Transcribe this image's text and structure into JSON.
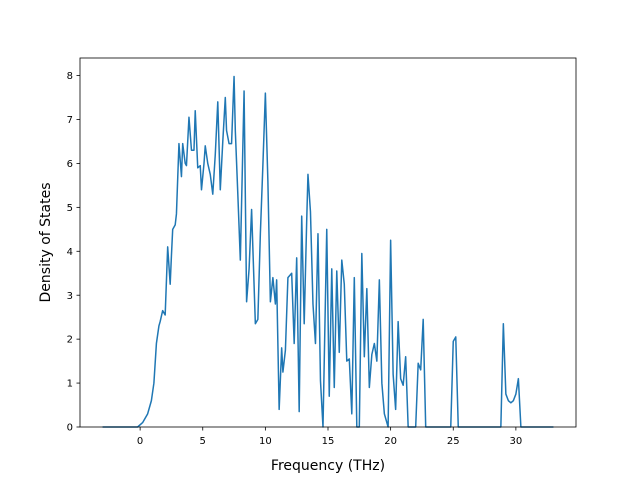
{
  "chart_data": {
    "type": "line",
    "title": "",
    "xlabel": "Frequency (THz)",
    "ylabel": "Density of States",
    "xlim": [
      -4.8,
      34.8
    ],
    "ylim": [
      0,
      8.4
    ],
    "xticks": [
      0,
      5,
      10,
      15,
      20,
      25,
      30
    ],
    "yticks": [
      0,
      1,
      2,
      3,
      4,
      5,
      6,
      7,
      8
    ],
    "grid": false,
    "legend": "none",
    "series": [
      {
        "color": "#1f77b4",
        "x": [
          -3.0,
          -0.2,
          0.2,
          0.6,
          0.9,
          1.1,
          1.3,
          1.5,
          1.6,
          1.8,
          2.0,
          2.2,
          2.4,
          2.5,
          2.6,
          2.8,
          2.9,
          3.1,
          3.3,
          3.4,
          3.6,
          3.7,
          3.9,
          4.1,
          4.3,
          4.4,
          4.6,
          4.8,
          4.9,
          5.1,
          5.2,
          5.4,
          5.6,
          5.8,
          6.0,
          6.2,
          6.4,
          6.6,
          6.8,
          6.9,
          7.1,
          7.3,
          7.5,
          7.6,
          7.8,
          8.0,
          8.3,
          8.5,
          8.7,
          8.9,
          9.2,
          9.4,
          9.6,
          9.8,
          10.0,
          10.2,
          10.4,
          10.6,
          10.8,
          10.9,
          11.1,
          11.3,
          11.4,
          11.6,
          11.8,
          12.1,
          12.3,
          12.5,
          12.7,
          12.9,
          13.1,
          13.3,
          13.4,
          13.6,
          13.8,
          14.0,
          14.2,
          14.4,
          14.6,
          14.9,
          15.1,
          15.3,
          15.5,
          15.7,
          15.9,
          16.1,
          16.3,
          16.5,
          16.7,
          16.9,
          17.1,
          17.3,
          17.5,
          17.7,
          17.9,
          18.1,
          18.3,
          18.5,
          18.7,
          18.9,
          19.1,
          19.3,
          19.5,
          19.8,
          20.0,
          20.2,
          20.4,
          20.6,
          20.8,
          21.0,
          21.2,
          21.4,
          21.6,
          21.8,
          22.0,
          22.2,
          22.4,
          22.6,
          22.8,
          23.0,
          24.6,
          24.8,
          25.0,
          25.2,
          25.4,
          28.6,
          28.8,
          29.0,
          29.2,
          29.4,
          29.6,
          29.8,
          30.0,
          30.2,
          30.4,
          33.0
        ],
        "y": [
          0,
          0,
          0.1,
          0.3,
          0.6,
          1.0,
          1.9,
          2.3,
          2.4,
          2.65,
          2.55,
          4.1,
          3.25,
          3.9,
          4.5,
          4.6,
          4.85,
          6.45,
          5.7,
          6.45,
          6.0,
          5.95,
          7.05,
          6.3,
          6.3,
          7.2,
          5.9,
          5.95,
          5.4,
          6.0,
          6.4,
          6.0,
          5.75,
          5.3,
          6.2,
          7.4,
          5.4,
          6.5,
          7.5,
          6.75,
          6.45,
          6.45,
          7.98,
          6.75,
          5.3,
          3.8,
          7.65,
          2.85,
          3.6,
          4.95,
          2.35,
          2.45,
          4.4,
          5.95,
          7.6,
          5.6,
          2.85,
          3.4,
          2.8,
          3.35,
          0.4,
          1.8,
          1.25,
          1.75,
          3.4,
          3.5,
          1.9,
          3.85,
          0.35,
          4.8,
          2.35,
          4.7,
          5.75,
          4.9,
          2.8,
          1.9,
          4.4,
          1.05,
          0.0,
          4.5,
          0.7,
          3.6,
          0.9,
          3.55,
          1.7,
          3.8,
          3.25,
          1.5,
          1.55,
          0.3,
          3.4,
          0.0,
          0.0,
          3.95,
          1.6,
          3.15,
          0.9,
          1.65,
          1.9,
          1.5,
          3.35,
          1.0,
          0.3,
          0.0,
          4.25,
          1.2,
          0.4,
          2.4,
          1.1,
          0.95,
          1.6,
          0.0,
          0.0,
          0.0,
          0.0,
          1.45,
          1.3,
          2.45,
          0.0,
          0.0,
          0.0,
          0.0,
          1.95,
          2.05,
          0.0,
          0.0,
          0.0,
          2.35,
          0.75,
          0.6,
          0.55,
          0.6,
          0.75,
          1.1,
          0.0,
          0.0
        ]
      }
    ]
  }
}
